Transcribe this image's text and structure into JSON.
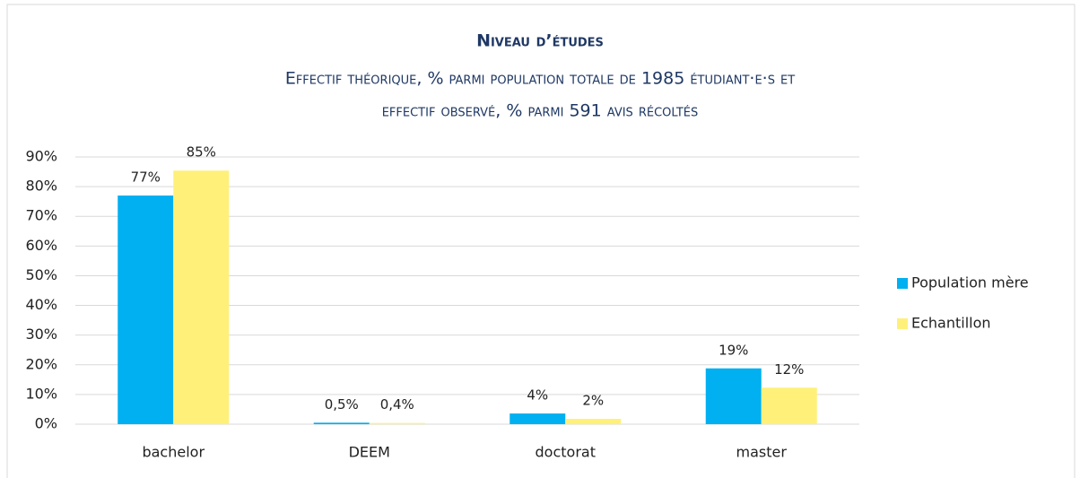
{
  "chart_data": {
    "type": "bar",
    "title": "Niveau d’études",
    "subtitle": [
      "Effectif théorique, % parmi population totale de 1985 étudiant·e·s et",
      "effectif observé, % parmi 591 avis récoltés"
    ],
    "categories": [
      "bachelor",
      "DEEM",
      "doctorat",
      "master"
    ],
    "series": [
      {
        "name": "Population mère",
        "color": "#00b0f0",
        "values": [
          77,
          0.5,
          3.6,
          18.8
        ],
        "value_labels": [
          "77%",
          "0,5%",
          "4%",
          "19%"
        ]
      },
      {
        "name": "Echantillon",
        "color": "#fff07a",
        "values": [
          85.4,
          0.4,
          1.8,
          12.3
        ],
        "value_labels": [
          "85%",
          "0,4%",
          "2%",
          "12%"
        ]
      }
    ],
    "ylim": [
      0,
      90
    ],
    "yticks": [
      {
        "value": 0,
        "label": "0%"
      },
      {
        "value": 10,
        "label": "10%"
      },
      {
        "value": 20,
        "label": "20%"
      },
      {
        "value": 30,
        "label": "30%"
      },
      {
        "value": 40,
        "label": "40%"
      },
      {
        "value": 50,
        "label": "50%"
      },
      {
        "value": 60,
        "label": "60%"
      },
      {
        "value": 70,
        "label": "70%"
      },
      {
        "value": 80,
        "label": "80%"
      },
      {
        "value": 90,
        "label": "90%"
      }
    ],
    "grid": true,
    "legend": "right"
  }
}
